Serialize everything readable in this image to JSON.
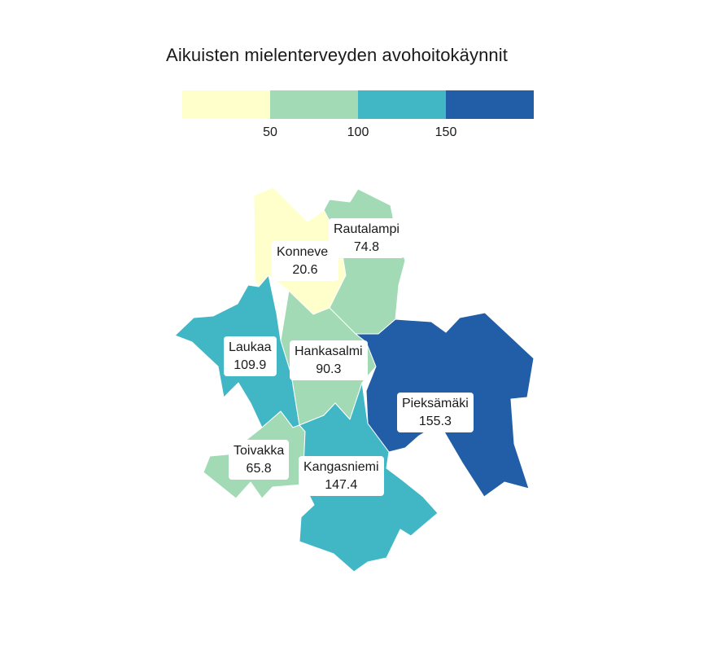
{
  "title": "Aikuisten mielenterveyden avohoitokäynnit",
  "legend": {
    "bins": [
      {
        "color": "#ffffcc"
      },
      {
        "color": "#a1dab4"
      },
      {
        "color": "#41b6c4"
      },
      {
        "color": "#225ea8"
      }
    ],
    "ticks": [
      "50",
      "100",
      "150"
    ]
  },
  "regions": [
    {
      "name": "Konnevesi",
      "value": "20.6",
      "color": "#ffffcc"
    },
    {
      "name": "Rautalampi",
      "value": "74.8",
      "color": "#a1dab4"
    },
    {
      "name": "Laukaa",
      "value": "109.9",
      "color": "#41b6c4"
    },
    {
      "name": "Hankasalmi",
      "value": "90.3",
      "color": "#a1dab4"
    },
    {
      "name": "Pieksämäki",
      "value": "155.3",
      "color": "#225ea8"
    },
    {
      "name": "Toivakka",
      "value": "65.8",
      "color": "#a1dab4"
    },
    {
      "name": "Kangasniemi",
      "value": "147.4",
      "color": "#41b6c4"
    }
  ]
}
